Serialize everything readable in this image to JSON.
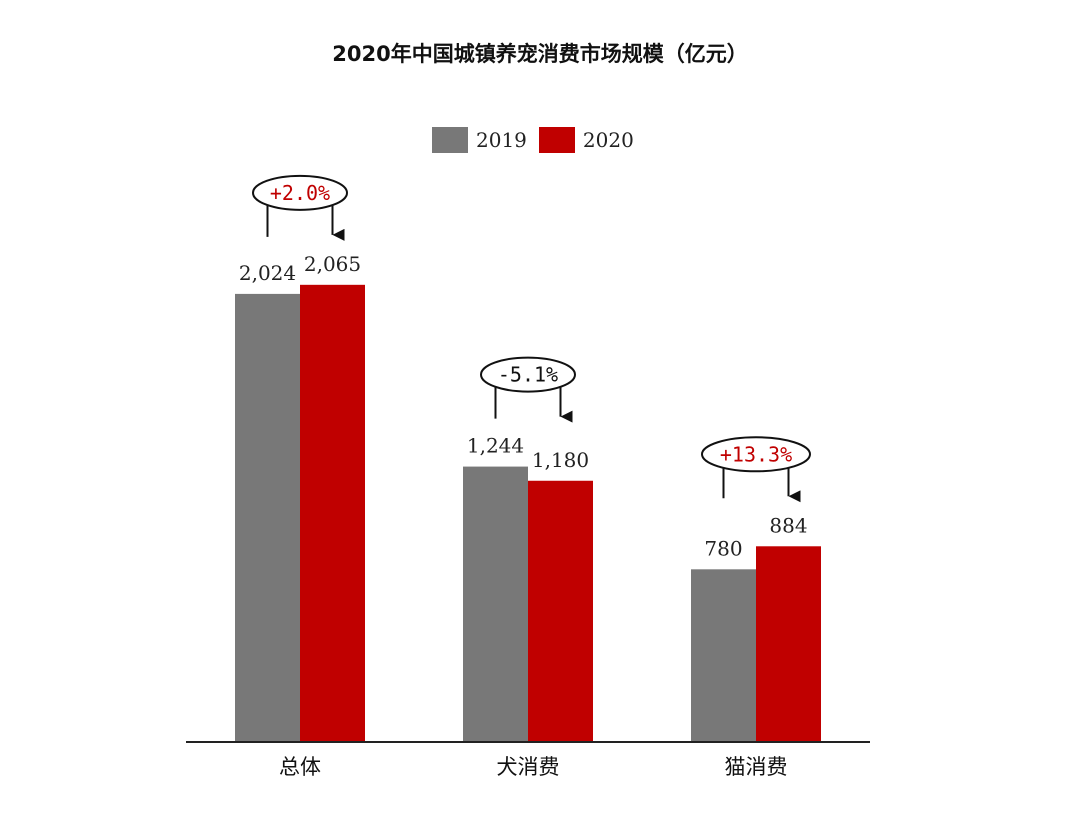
{
  "colors": {
    "series_2019": "#787878",
    "series_2020": "#c00000",
    "change_positive": "#c00000",
    "change_negative": "#111111"
  },
  "chart_data": {
    "type": "bar",
    "title": "2020年中国城镇养宠消费市场规模（亿元）",
    "categories": [
      "总体",
      "犬消费",
      "猫消费"
    ],
    "series": [
      {
        "name": "2019",
        "values": [
          2024,
          1244,
          780
        ]
      },
      {
        "name": "2020",
        "values": [
          2065,
          1180,
          884
        ]
      }
    ],
    "value_labels": [
      [
        "2,024",
        "1,244",
        "780"
      ],
      [
        "2,065",
        "1,180",
        "884"
      ]
    ],
    "changes": [
      "+2.0%",
      "-5.1%",
      "+13.3%"
    ],
    "legend_position": "top",
    "grid": false,
    "xlabel": "",
    "ylabel": ""
  }
}
